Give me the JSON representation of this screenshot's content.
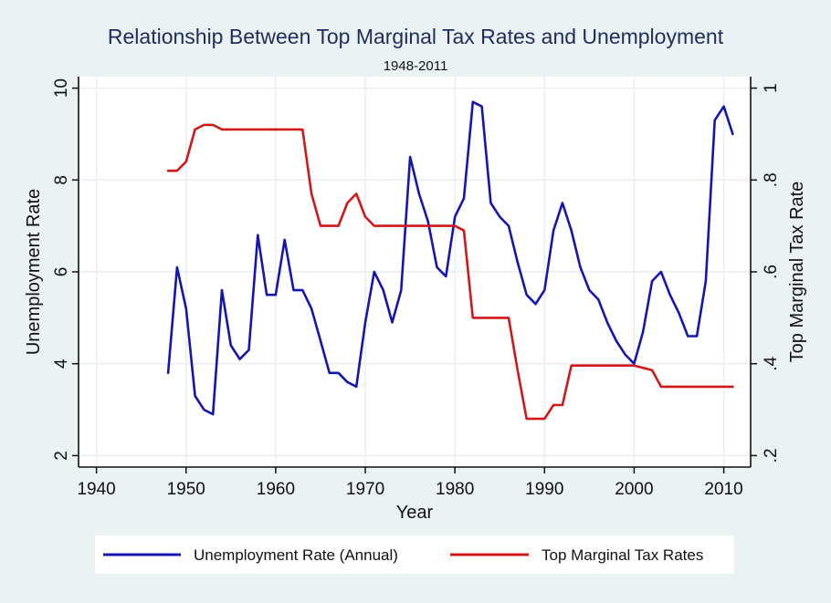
{
  "chart_data": {
    "type": "line",
    "title": "Relationship Between Top Marginal Tax Rates and Unemployment",
    "subtitle": "1948-2011",
    "xlabel": "Year",
    "ylabel": "Unemployment Rate",
    "y2label": "Top Marginal Tax Rate",
    "xlim": [
      1938,
      2013
    ],
    "ylim": [
      1.75,
      10.25
    ],
    "y2lim": [
      0.175,
      1.025
    ],
    "xticks": [
      1940,
      1950,
      1960,
      1970,
      1980,
      1990,
      2000,
      2010
    ],
    "xtick_labels": [
      "1940",
      "1950",
      "1960",
      "1970",
      "1980",
      "1990",
      "2000",
      "2010"
    ],
    "yticks": [
      2,
      4,
      6,
      8,
      10
    ],
    "ytick_labels": [
      "2",
      "4",
      "6",
      "8",
      "10"
    ],
    "y2ticks": [
      0.2,
      0.4,
      0.6,
      0.8,
      1.0
    ],
    "y2tick_labels": [
      ".2",
      ".4",
      ".6",
      ".8",
      "1"
    ],
    "grid": true,
    "legend_position": "bottom",
    "x": [
      1948,
      1949,
      1950,
      1951,
      1952,
      1953,
      1954,
      1955,
      1956,
      1957,
      1958,
      1959,
      1960,
      1961,
      1962,
      1963,
      1964,
      1965,
      1966,
      1967,
      1968,
      1969,
      1970,
      1971,
      1972,
      1973,
      1974,
      1975,
      1976,
      1977,
      1978,
      1979,
      1980,
      1981,
      1982,
      1983,
      1984,
      1985,
      1986,
      1987,
      1988,
      1989,
      1990,
      1991,
      1992,
      1993,
      1994,
      1995,
      1996,
      1997,
      1998,
      1999,
      2000,
      2001,
      2002,
      2003,
      2004,
      2005,
      2006,
      2007,
      2008,
      2009,
      2010,
      2011
    ],
    "series": [
      {
        "name": "Unemployment Rate (Annual)",
        "axis": "left",
        "color": "#1515b0",
        "values": [
          3.8,
          6.1,
          5.2,
          3.3,
          3.0,
          2.9,
          5.6,
          4.4,
          4.1,
          4.3,
          6.8,
          5.5,
          5.5,
          6.7,
          5.6,
          5.6,
          5.2,
          4.5,
          3.8,
          3.8,
          3.6,
          3.5,
          4.9,
          6.0,
          5.6,
          4.9,
          5.6,
          8.5,
          7.7,
          7.1,
          6.1,
          5.9,
          7.2,
          7.6,
          9.7,
          9.6,
          7.5,
          7.2,
          7.0,
          6.2,
          5.5,
          5.3,
          5.6,
          6.9,
          7.5,
          6.9,
          6.1,
          5.6,
          5.4,
          4.9,
          4.5,
          4.2,
          4.0,
          4.7,
          5.8,
          6.0,
          5.5,
          5.1,
          4.6,
          4.6,
          5.8,
          9.3,
          9.6,
          9.0
        ]
      },
      {
        "name": "Top Marginal Tax Rates",
        "axis": "right",
        "color": "#d01818",
        "values": [
          0.82,
          0.82,
          0.84,
          0.91,
          0.92,
          0.92,
          0.91,
          0.91,
          0.91,
          0.91,
          0.91,
          0.91,
          0.91,
          0.91,
          0.91,
          0.91,
          0.77,
          0.7,
          0.7,
          0.7,
          0.75,
          0.77,
          0.72,
          0.7,
          0.7,
          0.7,
          0.7,
          0.7,
          0.7,
          0.7,
          0.7,
          0.7,
          0.7,
          0.69,
          0.5,
          0.5,
          0.5,
          0.5,
          0.5,
          0.385,
          0.28,
          0.28,
          0.28,
          0.31,
          0.31,
          0.396,
          0.396,
          0.396,
          0.396,
          0.396,
          0.396,
          0.396,
          0.396,
          0.391,
          0.386,
          0.35,
          0.35,
          0.35,
          0.35,
          0.35,
          0.35,
          0.35,
          0.35,
          0.35
        ]
      }
    ]
  }
}
